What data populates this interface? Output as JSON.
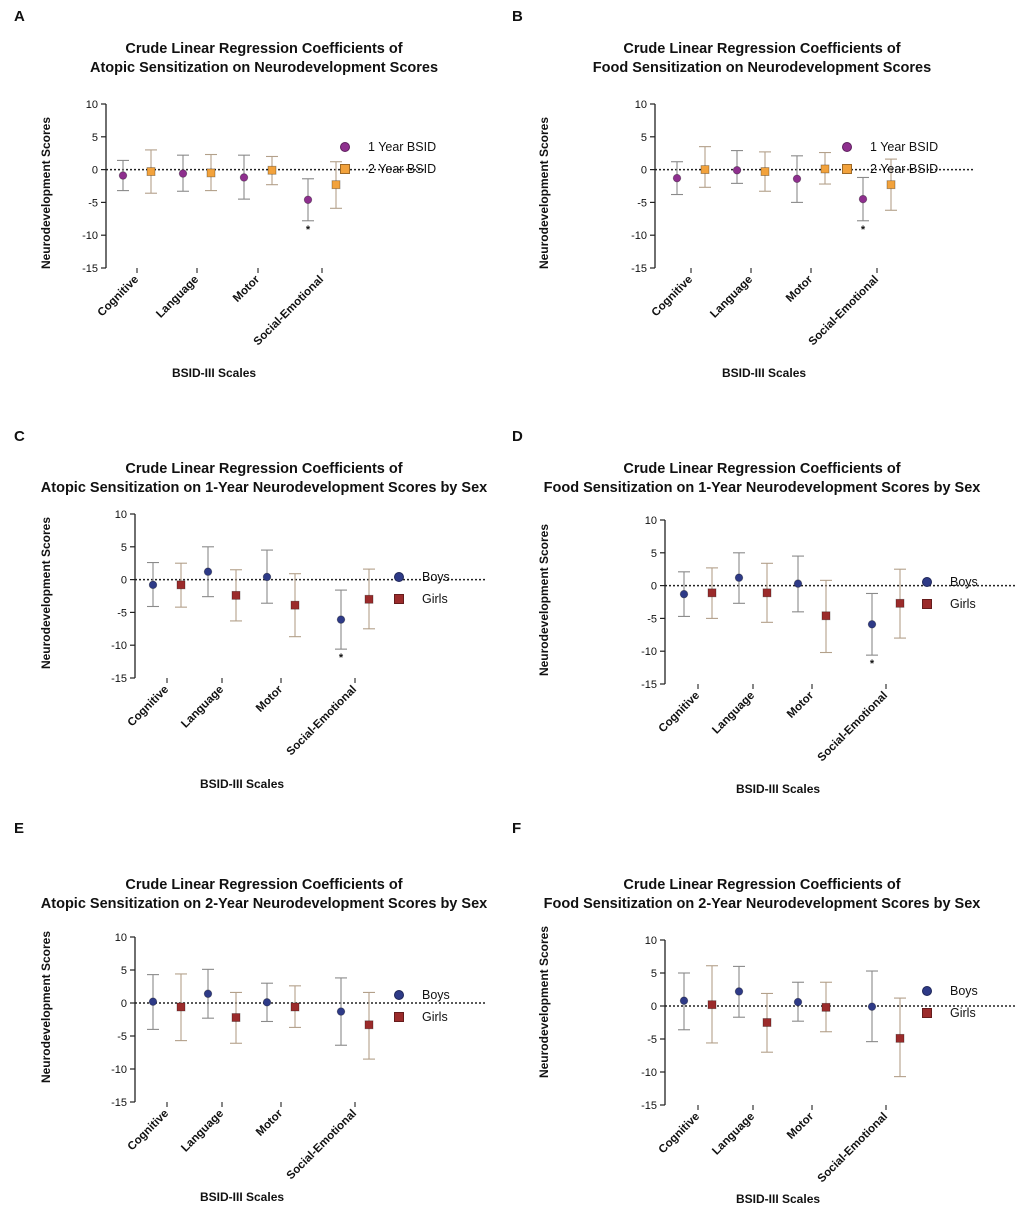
{
  "chart_data": [
    {
      "id": "A",
      "type": "scatter",
      "panel_label": "A",
      "title_line1": "Crude Linear Regression Coefficients of",
      "title_line2": "Atopic Sensitization on Neurodevelopment Scores",
      "xlabel": "BSID-III Scales",
      "ylabel": "Neurodevelopment Scores",
      "ylim": [
        -15,
        10
      ],
      "yticks": [
        10,
        5,
        0,
        -5,
        -10,
        -15
      ],
      "categories": [
        "Cognitive",
        "Language",
        "Motor",
        "Social-Emotional"
      ],
      "significance_mark": "*",
      "series": [
        {
          "name": "1 Year BSID",
          "color": "#8e2f8e",
          "marker": "circle",
          "values": [
            -0.9,
            -0.6,
            -1.2,
            -4.6
          ],
          "lower": [
            -3.2,
            -3.3,
            -4.5,
            -7.8
          ],
          "upper": [
            1.4,
            2.2,
            2.2,
            -1.4
          ],
          "significant": [
            false,
            false,
            false,
            true
          ]
        },
        {
          "name": "2 Year BSID",
          "color": "#f2a23c",
          "marker": "square",
          "values": [
            -0.3,
            -0.5,
            -0.1,
            -2.3
          ],
          "lower": [
            -3.6,
            -3.2,
            -2.3,
            -5.9
          ],
          "upper": [
            3.0,
            2.3,
            2.0,
            1.2
          ],
          "significant": [
            false,
            false,
            false,
            false
          ]
        }
      ]
    },
    {
      "id": "B",
      "type": "scatter",
      "panel_label": "B",
      "title_line1": "Crude Linear Regression Coefficients of",
      "title_line2": "Food Sensitization on Neurodevelopment Scores",
      "xlabel": "BSID-III Scales",
      "ylabel": "Neurodevelopment Scores",
      "ylim": [
        -15,
        10
      ],
      "yticks": [
        10,
        5,
        0,
        -5,
        -10,
        -15
      ],
      "categories": [
        "Cognitive",
        "Language",
        "Motor",
        "Social-Emotional"
      ],
      "significance_mark": "*",
      "series": [
        {
          "name": "1 Year BSID",
          "color": "#8e2f8e",
          "marker": "circle",
          "values": [
            -1.3,
            -0.1,
            -1.4,
            -4.5
          ],
          "lower": [
            -3.8,
            -2.1,
            -5.0,
            -7.8
          ],
          "upper": [
            1.2,
            2.9,
            2.1,
            -1.2
          ],
          "significant": [
            false,
            false,
            false,
            true
          ]
        },
        {
          "name": "2 Year BSID",
          "color": "#f2a23c",
          "marker": "square",
          "values": [
            0.0,
            -0.3,
            0.1,
            -2.3
          ],
          "lower": [
            -2.7,
            -3.3,
            -2.2,
            -6.2
          ],
          "upper": [
            3.5,
            2.7,
            2.6,
            1.6
          ],
          "significant": [
            false,
            false,
            false,
            false
          ]
        }
      ]
    },
    {
      "id": "C",
      "type": "scatter",
      "panel_label": "C",
      "title_line1": "Crude Linear Regression Coefficients of",
      "title_line2": "Atopic Sensitization on 1-Year Neurodevelopment Scores by Sex",
      "xlabel": "BSID-III Scales",
      "ylabel": "Neurodevelopment Scores",
      "ylim": [
        -15,
        10
      ],
      "yticks": [
        10,
        5,
        0,
        -5,
        -10,
        -15
      ],
      "categories": [
        "Cognitive",
        "Language",
        "Motor",
        "Social-Emotional"
      ],
      "significance_mark": "*",
      "series": [
        {
          "name": "Boys",
          "color": "#2e3a87",
          "marker": "circle",
          "values": [
            -0.8,
            1.2,
            0.4,
            -6.1
          ],
          "lower": [
            -4.1,
            -2.6,
            -3.6,
            -10.6
          ],
          "upper": [
            2.6,
            5.0,
            4.5,
            -1.6
          ],
          "significant": [
            false,
            false,
            false,
            true
          ]
        },
        {
          "name": "Girls",
          "color": "#9b2b2b",
          "marker": "square",
          "values": [
            -0.8,
            -2.4,
            -3.9,
            -3.0
          ],
          "lower": [
            -4.2,
            -6.3,
            -8.7,
            -7.5
          ],
          "upper": [
            2.5,
            1.5,
            0.9,
            1.6
          ],
          "significant": [
            false,
            false,
            false,
            false
          ]
        }
      ]
    },
    {
      "id": "D",
      "type": "scatter",
      "panel_label": "D",
      "title_line1": "Crude Linear Regression Coefficients of",
      "title_line2": "Food Sensitization on 1-Year Neurodevelopment Scores by Sex",
      "xlabel": "BSID-III Scales",
      "ylabel": "Neurodevelopment Scores",
      "ylim": [
        -15,
        10
      ],
      "yticks": [
        10,
        5,
        0,
        -5,
        -10,
        -15
      ],
      "categories": [
        "Cognitive",
        "Language",
        "Motor",
        "Social-Emotional"
      ],
      "significance_mark": "*",
      "series": [
        {
          "name": "Boys",
          "color": "#2e3a87",
          "marker": "circle",
          "values": [
            -1.3,
            1.2,
            0.3,
            -5.9
          ],
          "lower": [
            -4.7,
            -2.7,
            -4.0,
            -10.6
          ],
          "upper": [
            2.1,
            5.0,
            4.5,
            -1.2
          ],
          "significant": [
            false,
            false,
            false,
            true
          ]
        },
        {
          "name": "Girls",
          "color": "#9b2b2b",
          "marker": "square",
          "values": [
            -1.1,
            -1.1,
            -4.6,
            -2.7
          ],
          "lower": [
            -5.0,
            -5.6,
            -10.2,
            -8.0
          ],
          "upper": [
            2.7,
            3.4,
            0.8,
            2.5
          ],
          "significant": [
            false,
            false,
            false,
            false
          ]
        }
      ]
    },
    {
      "id": "E",
      "type": "scatter",
      "panel_label": "E",
      "title_line1": "Crude Linear Regression Coefficients of",
      "title_line2": "Atopic Sensitization on 2-Year Neurodevelopment Scores by Sex",
      "xlabel": "BSID-III Scales",
      "ylabel": "Neurodevelopment Scores",
      "ylim": [
        -15,
        10
      ],
      "yticks": [
        10,
        5,
        0,
        -5,
        -10,
        -15
      ],
      "categories": [
        "Cognitive",
        "Language",
        "Motor",
        "Social-Emotional"
      ],
      "significance_mark": "*",
      "series": [
        {
          "name": "Boys",
          "color": "#2e3a87",
          "marker": "circle",
          "values": [
            0.2,
            1.4,
            0.1,
            -1.3
          ],
          "lower": [
            -4.0,
            -2.3,
            -2.8,
            -6.4
          ],
          "upper": [
            4.3,
            5.1,
            3.0,
            3.8
          ],
          "significant": [
            false,
            false,
            false,
            false
          ]
        },
        {
          "name": "Girls",
          "color": "#9b2b2b",
          "marker": "square",
          "values": [
            -0.6,
            -2.2,
            -0.6,
            -3.3
          ],
          "lower": [
            -5.7,
            -6.1,
            -3.7,
            -8.5
          ],
          "upper": [
            4.4,
            1.6,
            2.6,
            1.6
          ],
          "significant": [
            false,
            false,
            false,
            false
          ]
        }
      ]
    },
    {
      "id": "F",
      "type": "scatter",
      "panel_label": "F",
      "title_line1": "Crude Linear Regression Coefficients of",
      "title_line2": "Food Sensitization on 2-Year Neurodevelopment Scores by Sex",
      "xlabel": "BSID-III Scales",
      "ylabel": "Neurodevelopment Scores",
      "ylim": [
        -15,
        10
      ],
      "yticks": [
        10,
        5,
        0,
        -5,
        -10,
        -15
      ],
      "categories": [
        "Cognitive",
        "Language",
        "Motor",
        "Social-Emotional"
      ],
      "significance_mark": "*",
      "series": [
        {
          "name": "Boys",
          "color": "#2e3a87",
          "marker": "circle",
          "values": [
            0.8,
            2.2,
            0.6,
            -0.1
          ],
          "lower": [
            -3.6,
            -1.7,
            -2.3,
            -5.4
          ],
          "upper": [
            5.0,
            6.0,
            3.6,
            5.3
          ],
          "significant": [
            false,
            false,
            false,
            false
          ]
        },
        {
          "name": "Girls",
          "color": "#9b2b2b",
          "marker": "square",
          "values": [
            0.2,
            -2.5,
            -0.2,
            -4.9
          ],
          "lower": [
            -5.6,
            -7.0,
            -3.9,
            -10.7
          ],
          "upper": [
            6.1,
            1.9,
            3.6,
            1.2
          ],
          "significant": [
            false,
            false,
            false,
            false
          ]
        }
      ]
    }
  ]
}
